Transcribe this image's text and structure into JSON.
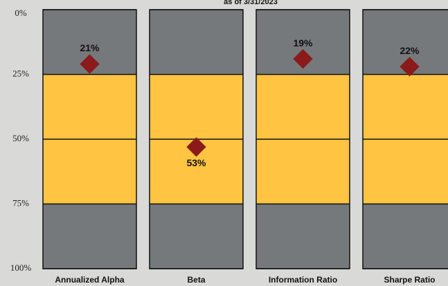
{
  "chart_data": {
    "type": "percentile",
    "subtitle": "as of 3/31/2023",
    "categories": [
      "Annualized Alpha",
      "Beta",
      "Information Ratio",
      "Sharpe Ratio"
    ],
    "values": [
      21,
      53,
      19,
      22
    ],
    "value_labels": [
      "21%",
      "53%",
      "19%",
      "22%"
    ],
    "color": "#8b1a1a",
    "ylim": [
      0,
      100
    ],
    "inverted": true,
    "yticks": [
      {
        "value": 0,
        "label": "0%"
      },
      {
        "value": 25,
        "label": "25%"
      },
      {
        "value": 50,
        "label": "50%"
      },
      {
        "value": 75,
        "label": "75%"
      },
      {
        "value": 100,
        "label": "100%"
      }
    ],
    "bands": [
      {
        "range": [
          0,
          25
        ],
        "color": "#75797c"
      },
      {
        "range": [
          25,
          75
        ],
        "color": "#fec442"
      },
      {
        "range": [
          75,
          100
        ],
        "color": "#75797c"
      }
    ],
    "grid": true
  }
}
